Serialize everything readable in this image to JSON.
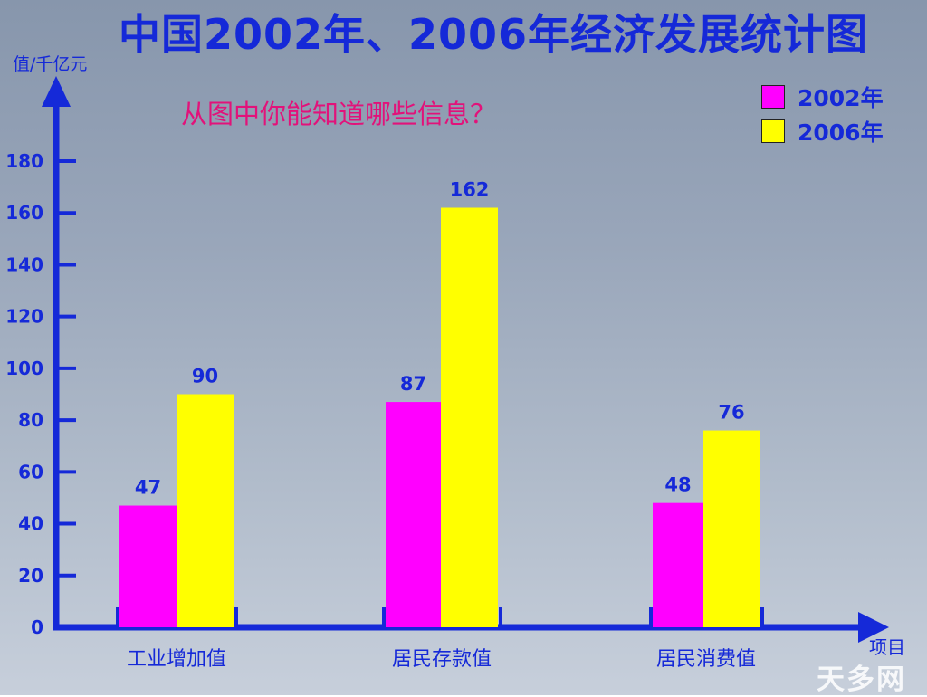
{
  "chart_data": {
    "type": "bar",
    "title": "中国2002年、2006年经济发展统计图",
    "ylabel": "值/千亿元",
    "xlabel": "项目",
    "annotation": "从图中你能知道哪些信息？",
    "categories": [
      "工业增加值",
      "居民存款值",
      "居民消费值"
    ],
    "series": [
      {
        "name": "2002年",
        "values": [
          47,
          87,
          48
        ],
        "color": "#ff00ff"
      },
      {
        "name": "2006年",
        "values": [
          90,
          162,
          76
        ],
        "color": "#ffff00"
      }
    ],
    "yticks": [
      "0",
      "20",
      "40",
      "60",
      "80",
      "100",
      "120",
      "140",
      "160",
      "180"
    ],
    "ylim": [
      0,
      180
    ],
    "legend_position": "top-right",
    "grid": false,
    "axis_color": "#1529d8"
  },
  "watermark": "天多网"
}
